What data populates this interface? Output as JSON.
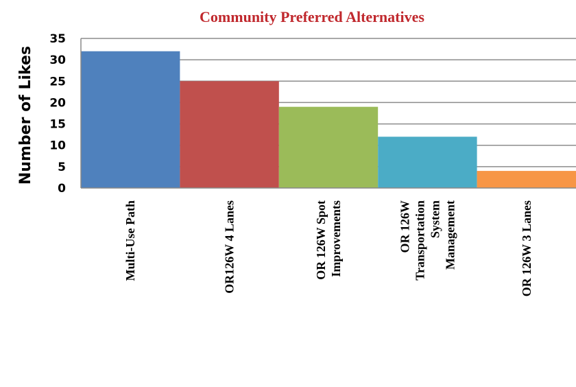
{
  "chart_data": {
    "type": "bar",
    "title": "Community Preferred Alternatives",
    "xlabel": "",
    "ylabel": "Number of Likes",
    "ylim": [
      0,
      35
    ],
    "yticks": [
      0,
      5,
      10,
      15,
      20,
      25,
      30,
      35
    ],
    "grid": true,
    "legend": "none",
    "categories": [
      "Multi-Use Path",
      "OR126W 4 Lanes",
      "OR 126W Spot Improvements",
      "OR 126W Transportation System Management",
      "OR 126W 3 Lanes"
    ],
    "category_lines": [
      [
        "Multi-Use Path"
      ],
      [
        "OR126W 4 Lanes"
      ],
      [
        "OR 126W Spot",
        "Improvements"
      ],
      [
        "OR 126W",
        "Transportation",
        "System",
        "Management"
      ],
      [
        "OR 126W 3 Lanes"
      ]
    ],
    "values": [
      32,
      25,
      19,
      12,
      4
    ],
    "colors": [
      "#4f81bd",
      "#c0504d",
      "#9bbb59",
      "#4bacc6",
      "#f79646"
    ]
  }
}
